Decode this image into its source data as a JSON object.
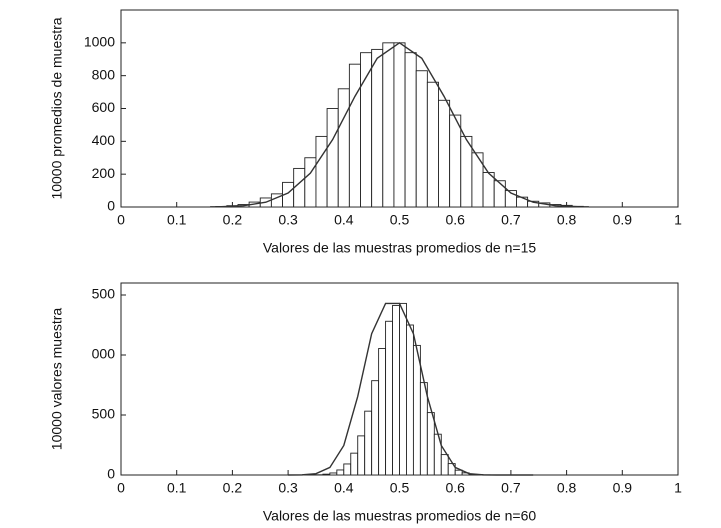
{
  "chart_data": [
    {
      "type": "histogram",
      "xlabel": "Valores de las muestras promedios de n=15",
      "ylabel": "10000 promedios de muestra",
      "xlim": [
        0,
        1
      ],
      "ylim": [
        0,
        1200
      ],
      "xticks": [
        0,
        0.1,
        0.2,
        0.3,
        0.4,
        0.5,
        0.6,
        0.7,
        0.8,
        0.9,
        1
      ],
      "yticks": [
        0,
        200,
        400,
        600,
        800,
        1000
      ],
      "bins": [
        0.17,
        0.19,
        0.21,
        0.23,
        0.25,
        0.27,
        0.29,
        0.31,
        0.33,
        0.35,
        0.37,
        0.39,
        0.41,
        0.43,
        0.45,
        0.47,
        0.49,
        0.51,
        0.53,
        0.55,
        0.57,
        0.59,
        0.61,
        0.63,
        0.65,
        0.67,
        0.69,
        0.71,
        0.73,
        0.75,
        0.77,
        0.79,
        0.81,
        0.83
      ],
      "values": [
        3,
        8,
        15,
        30,
        55,
        80,
        150,
        235,
        300,
        430,
        600,
        720,
        870,
        940,
        960,
        1000,
        1000,
        940,
        830,
        760,
        650,
        560,
        430,
        330,
        210,
        160,
        100,
        60,
        35,
        25,
        15,
        10,
        4
      ],
      "color": "#ffffff",
      "curve": {
        "color": "#333333",
        "x": [
          0.16,
          0.18,
          0.22,
          0.26,
          0.3,
          0.34,
          0.38,
          0.42,
          0.46,
          0.5,
          0.54,
          0.58,
          0.62,
          0.66,
          0.7,
          0.74,
          0.78,
          0.82,
          0.84
        ],
        "y": [
          1,
          2,
          8,
          29,
          85,
          206,
          411,
          674,
          906,
          1000,
          906,
          674,
          411,
          206,
          85,
          29,
          8,
          2,
          1
        ]
      }
    },
    {
      "type": "histogram",
      "xlabel": "Valores de las muestras promedios de n=60",
      "ylabel": "10000 valores muestra",
      "xlim": [
        0,
        1
      ],
      "ylim": [
        0,
        1600
      ],
      "xticks": [
        0,
        0.1,
        0.2,
        0.3,
        0.4,
        0.5,
        0.6,
        0.7,
        0.8,
        0.9,
        1
      ],
      "yticks": [
        0,
        500,
        {
          "value": 1000,
          "label": "000"
        },
        {
          "value": 1500,
          "label": "500"
        }
      ],
      "bins": [
        0.3375,
        0.35,
        0.3625,
        0.375,
        0.3875,
        0.4,
        0.4125,
        0.425,
        0.4375,
        0.45,
        0.4625,
        0.475,
        0.4875,
        0.5,
        0.5125,
        0.525,
        0.5375,
        0.55,
        0.5625,
        0.575,
        0.5875,
        0.6,
        0.6125,
        0.625,
        0.6375,
        0.65,
        0.6625
      ],
      "values": [
        1,
        2,
        7,
        17,
        42,
        92,
        182,
        326,
        532,
        786,
        1054,
        1281,
        1413,
        1430,
        1250,
        1080,
        770,
        520,
        340,
        170,
        95,
        40,
        18,
        6,
        3,
        1
      ],
      "color": "#ffffff",
      "curve": {
        "color": "#333333",
        "x": [
          0.3,
          0.325,
          0.35,
          0.375,
          0.4,
          0.425,
          0.45,
          0.475,
          0.5,
          0.525,
          0.55,
          0.575,
          0.6,
          0.625,
          0.65,
          0.675,
          0.7,
          0.74
        ],
        "y": [
          0,
          1,
          11,
          63,
          246,
          655,
          1177,
          1430,
          1430,
          1177,
          655,
          246,
          63,
          11,
          1,
          0,
          0,
          0
        ]
      }
    }
  ]
}
